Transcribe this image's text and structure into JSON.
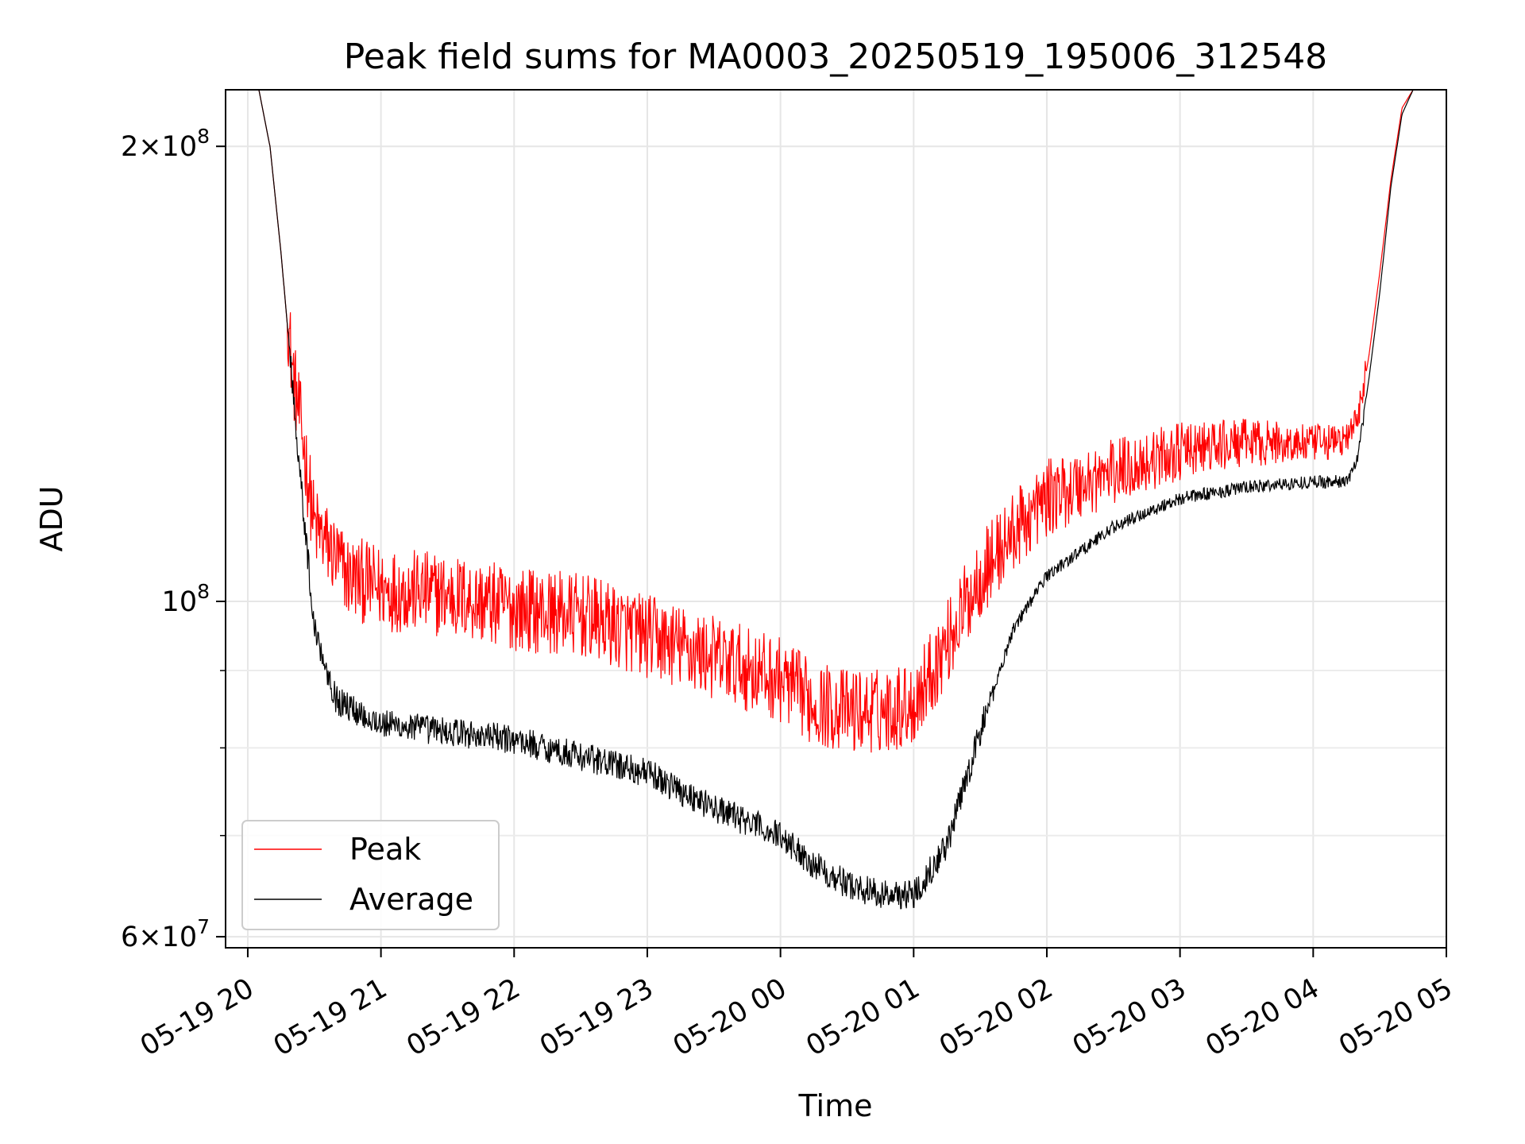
{
  "chart_data": {
    "type": "line",
    "title": "Peak field sums for MA0003_20250519_195006_312548",
    "xlabel": "Time",
    "ylabel": "ADU",
    "yscale": "log",
    "grid": true,
    "legend_position": "lower-left",
    "xlim": [
      "2025-05-19 19:50",
      "2025-05-20 05:00"
    ],
    "ylim": [
      59000000,
      218000000
    ],
    "x_ticks": [
      "05-19 20",
      "05-19 21",
      "05-19 22",
      "05-19 23",
      "05-20 00",
      "05-20 01",
      "05-20 02",
      "05-20 03",
      "05-20 04",
      "05-20 05"
    ],
    "y_ticks_major": [
      {
        "value": 60000000,
        "mantissa": "6",
        "exponent": "7"
      },
      {
        "value": 100000000,
        "mantissa": "",
        "exponent": "8"
      },
      {
        "value": 200000000,
        "mantissa": "2",
        "exponent": "8"
      }
    ],
    "y_ticks_minor": [
      70000000,
      80000000,
      90000000
    ],
    "series": [
      {
        "name": "Peak",
        "color": "#ff0000",
        "x": [
          "2025-05-19 19:53",
          "2025-05-19 20:05",
          "2025-05-19 20:10",
          "2025-05-19 20:15",
          "2025-05-19 20:20",
          "2025-05-19 20:25",
          "2025-05-19 20:30",
          "2025-05-19 20:45",
          "2025-05-19 21:00",
          "2025-05-19 21:30",
          "2025-05-19 22:00",
          "2025-05-19 22:30",
          "2025-05-19 23:00",
          "2025-05-19 23:30",
          "2025-05-20 00:00",
          "2025-05-20 00:15",
          "2025-05-20 00:30",
          "2025-05-20 00:45",
          "2025-05-20 01:00",
          "2025-05-20 01:15",
          "2025-05-20 01:30",
          "2025-05-20 01:45",
          "2025-05-20 02:00",
          "2025-05-20 02:30",
          "2025-05-20 03:00",
          "2025-05-20 03:30",
          "2025-05-20 04:00",
          "2025-05-20 04:15",
          "2025-05-20 04:20",
          "2025-05-20 04:25",
          "2025-05-20 04:30",
          "2025-05-20 04:35",
          "2025-05-20 04:40",
          "2025-05-20 04:45",
          "2025-05-20 04:50",
          "2025-05-20 05:00"
        ],
        "values": [
          218000000,
          218000000,
          200000000,
          170000000,
          140000000,
          125000000,
          110000000,
          102000000,
          100000000,
          99000000,
          97000000,
          96000000,
          93000000,
          90000000,
          87000000,
          84000000,
          83000000,
          83000000,
          84000000,
          92000000,
          102000000,
          109000000,
          115000000,
          120000000,
          124000000,
          126000000,
          126000000,
          127000000,
          131000000,
          145000000,
          165000000,
          190000000,
          212000000,
          218000000,
          218000000,
          218000000
        ]
      },
      {
        "name": "Average",
        "color": "#000000",
        "x": [
          "2025-05-19 19:53",
          "2025-05-19 20:05",
          "2025-05-19 20:10",
          "2025-05-19 20:15",
          "2025-05-19 20:20",
          "2025-05-19 20:25",
          "2025-05-19 20:30",
          "2025-05-19 20:40",
          "2025-05-19 21:00",
          "2025-05-19 21:30",
          "2025-05-19 22:00",
          "2025-05-19 22:30",
          "2025-05-19 23:00",
          "2025-05-19 23:30",
          "2025-05-20 00:00",
          "2025-05-20 00:15",
          "2025-05-20 00:30",
          "2025-05-20 00:45",
          "2025-05-20 01:00",
          "2025-05-20 01:15",
          "2025-05-20 01:30",
          "2025-05-20 01:45",
          "2025-05-20 02:00",
          "2025-05-20 02:30",
          "2025-05-20 03:00",
          "2025-05-20 03:30",
          "2025-05-20 04:00",
          "2025-05-20 04:15",
          "2025-05-20 04:20",
          "2025-05-20 04:25",
          "2025-05-20 04:30",
          "2025-05-20 04:35",
          "2025-05-20 04:40",
          "2025-05-20 04:45",
          "2025-05-20 04:50",
          "2025-05-20 05:00"
        ],
        "values": [
          218000000,
          218000000,
          200000000,
          170000000,
          140000000,
          115000000,
          96000000,
          86000000,
          83000000,
          82000000,
          81000000,
          79000000,
          77000000,
          73000000,
          70000000,
          67000000,
          65000000,
          64000000,
          64000000,
          69000000,
          82000000,
          96000000,
          104000000,
          112000000,
          117000000,
          119000000,
          120000000,
          120000000,
          124000000,
          140000000,
          160000000,
          188000000,
          210000000,
          218000000,
          218000000,
          218000000
        ]
      }
    ]
  }
}
